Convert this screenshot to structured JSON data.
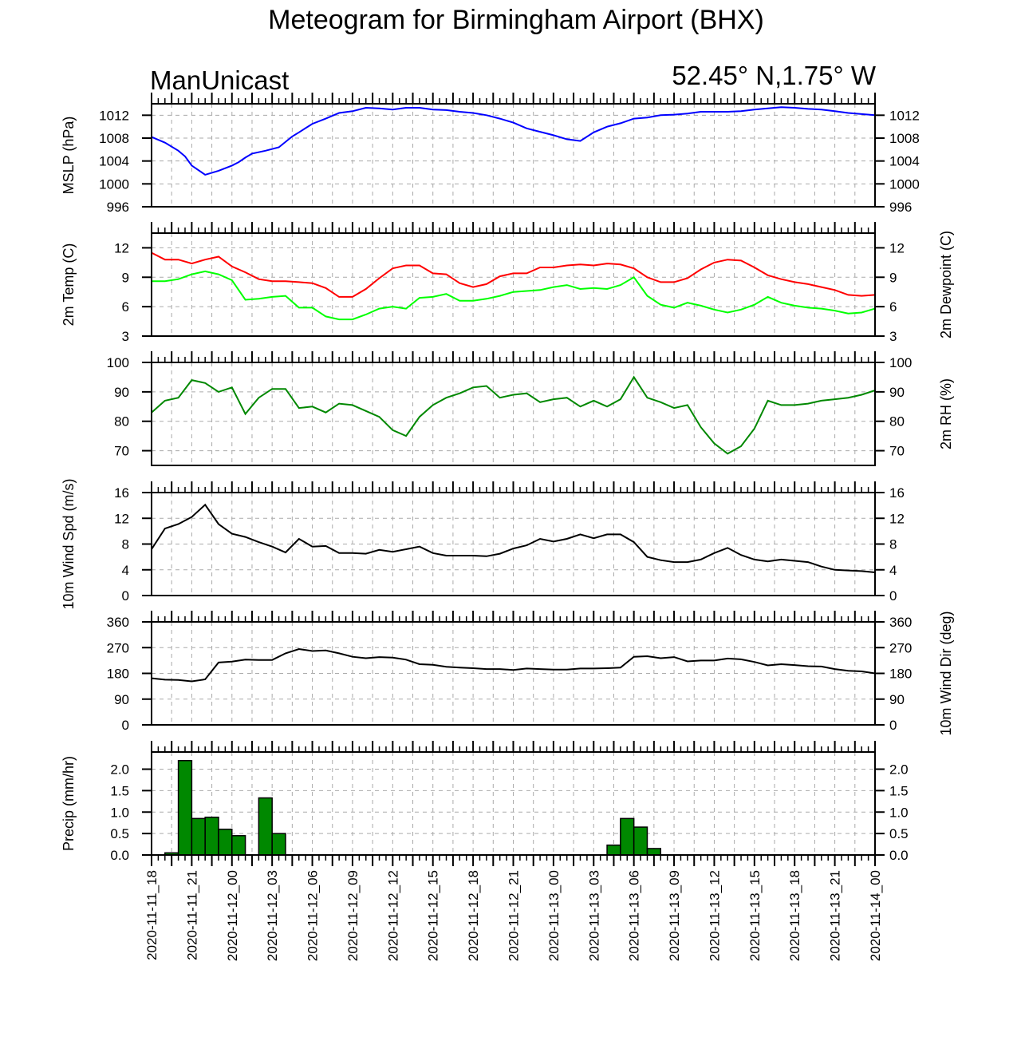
{
  "title": "Meteogram for Birmingham Airport (BHX)",
  "model": "ManUnicast",
  "location": "52.45° N,1.75° W",
  "time_labels": [
    "2020-11-11_18",
    "2020-11-11_21",
    "2020-11-12_00",
    "2020-11-12_03",
    "2020-11-12_06",
    "2020-11-12_09",
    "2020-11-12_12",
    "2020-11-12_15",
    "2020-11-12_18",
    "2020-11-12_21",
    "2020-11-13_00",
    "2020-11-13_03",
    "2020-11-13_06",
    "2020-11-13_09",
    "2020-11-13_12",
    "2020-11-13_15",
    "2020-11-13_18",
    "2020-11-13_21",
    "2020-11-14_00"
  ],
  "colors": {
    "mslp": "#0000ff",
    "temp": "#ff0000",
    "dewpoint": "#00ff00",
    "rh": "#008800",
    "wind": "#000000",
    "precip_fill": "#008800",
    "precip_edge": "#000000"
  },
  "chart_data": [
    {
      "type": "line",
      "id": "mslp",
      "ylabel": "MSLP (hPa)",
      "ylim": [
        996,
        1014
      ],
      "yticks": [
        996,
        1000,
        1004,
        1008,
        1012
      ],
      "grid": true,
      "x_hours": [
        0,
        2,
        4,
        5,
        6,
        8,
        10,
        12,
        13,
        14,
        15,
        17,
        19,
        21,
        22,
        24,
        26,
        28,
        30,
        32,
        34,
        36,
        38,
        40,
        42,
        44,
        46,
        47,
        48,
        50,
        52,
        54,
        56,
        58,
        60,
        62,
        64,
        66,
        68,
        70,
        72,
        74,
        76,
        78,
        80,
        82,
        84,
        86,
        88,
        90,
        92,
        94,
        96,
        98,
        100,
        102,
        104,
        106,
        108
      ],
      "series": [
        {
          "values": [
            1008.2,
            1007.2,
            1005.8,
            1004.8,
            1003.2,
            1001.6,
            1002.3,
            1003.2,
            1003.8,
            1004.6,
            1005.3,
            1005.8,
            1006.4,
            1008.3,
            1009.0,
            1010.5,
            1011.4,
            1012.4,
            1012.7,
            1013.3,
            1013.2,
            1013.0,
            1013.3,
            1013.3,
            1013.0,
            1012.9,
            1012.6,
            1012.5,
            1012.4,
            1012.0,
            1011.4,
            1010.7,
            1009.7,
            1009.1,
            1008.5,
            1007.8,
            1007.5,
            1009.0,
            1010.0,
            1010.6,
            1011.4,
            1011.6,
            1012.0,
            1012.1,
            1012.3,
            1012.6,
            1012.6,
            1012.6,
            1012.7,
            1013.0,
            1013.2,
            1013.4,
            1013.3,
            1013.1,
            1013.0,
            1012.7,
            1012.4,
            1012.2,
            1012.0
          ]
        }
      ]
    },
    {
      "type": "line",
      "id": "temp",
      "ylabel": "2m Temp (C)",
      "ylabel_right": "2m Dewpoint (C)",
      "ylim": [
        3,
        13.5
      ],
      "yticks": [
        3,
        6,
        9,
        12
      ],
      "grid": true,
      "x_hours": [
        0,
        2,
        4,
        6,
        8,
        10,
        12,
        14,
        16,
        18,
        20,
        22,
        24,
        26,
        28,
        30,
        32,
        34,
        36,
        38,
        40,
        42,
        44,
        46,
        48,
        50,
        52,
        54,
        56,
        58,
        60,
        62,
        64,
        66,
        68,
        70,
        72,
        74,
        76,
        78,
        80,
        82,
        84,
        86,
        88,
        90,
        92,
        94,
        96,
        98,
        100,
        102,
        104,
        106,
        108
      ],
      "series": [
        {
          "name": "temp",
          "color_key": "temp",
          "values": [
            11.5,
            10.8,
            10.8,
            10.4,
            10.8,
            11.1,
            10.1,
            9.5,
            8.8,
            8.6,
            8.6,
            8.5,
            8.4,
            7.9,
            7.0,
            7.0,
            7.8,
            8.9,
            9.9,
            10.2,
            10.2,
            9.4,
            9.3,
            8.4,
            8.0,
            8.3,
            9.1,
            9.4,
            9.4,
            10.0,
            10.0,
            10.2,
            10.3,
            10.2,
            10.4,
            10.3,
            9.9,
            9.0,
            8.5,
            8.5,
            8.9,
            9.8,
            10.5,
            10.8,
            10.7,
            10.0,
            9.2,
            8.8,
            8.5,
            8.3,
            8.0,
            7.7,
            7.2,
            7.1,
            7.2
          ]
        },
        {
          "name": "dewpoint",
          "color_key": "dewpoint",
          "values": [
            8.6,
            8.6,
            8.8,
            9.3,
            9.6,
            9.3,
            8.7,
            6.7,
            6.8,
            7.0,
            7.1,
            5.9,
            5.9,
            5.0,
            4.7,
            4.7,
            5.2,
            5.8,
            6.0,
            5.8,
            6.9,
            7.0,
            7.3,
            6.6,
            6.6,
            6.8,
            7.1,
            7.5,
            7.6,
            7.7,
            8.0,
            8.2,
            7.8,
            7.9,
            7.8,
            8.2,
            9.0,
            7.1,
            6.2,
            5.9,
            6.4,
            6.1,
            5.7,
            5.4,
            5.7,
            6.2,
            7.0,
            6.4,
            6.1,
            5.9,
            5.8,
            5.6,
            5.3,
            5.4,
            5.8
          ]
        }
      ]
    },
    {
      "type": "line",
      "id": "rh",
      "ylabel_right": "2m RH (%)",
      "ylim": [
        65,
        100
      ],
      "yticks": [
        70,
        80,
        90,
        100
      ],
      "grid": true,
      "x_hours": [
        0,
        2,
        4,
        6,
        8,
        10,
        12,
        14,
        16,
        18,
        20,
        22,
        24,
        26,
        28,
        30,
        32,
        34,
        36,
        38,
        40,
        42,
        44,
        46,
        48,
        50,
        52,
        54,
        56,
        58,
        60,
        62,
        64,
        66,
        68,
        70,
        72,
        74,
        76,
        78,
        80,
        82,
        84,
        86,
        88,
        90,
        92,
        94,
        96,
        98,
        100,
        102,
        104,
        106,
        108
      ],
      "series": [
        {
          "name": "rh",
          "color_key": "rh",
          "values": [
            83,
            87,
            88,
            94,
            93,
            90,
            91.5,
            82.5,
            88,
            91,
            91,
            84.5,
            85,
            83,
            86,
            85.5,
            83.5,
            81.5,
            77,
            75,
            81.5,
            85.5,
            88,
            89.5,
            91.5,
            92,
            88,
            89,
            89.5,
            86.5,
            87.5,
            88,
            85,
            87,
            85,
            87.5,
            95,
            88,
            86.5,
            84.5,
            85.5,
            78,
            72.5,
            69,
            71.5,
            77.5,
            87,
            85.5,
            85.5,
            86,
            87,
            87.5,
            88,
            89,
            90.5
          ]
        }
      ]
    },
    {
      "type": "line",
      "id": "wind_speed",
      "ylabel": "10m Wind Spd (m/s)",
      "ylim": [
        0,
        16
      ],
      "yticks": [
        0,
        4,
        8,
        12,
        16
      ],
      "grid": true,
      "x_hours": [
        0,
        2,
        4,
        6,
        8,
        10,
        12,
        14,
        16,
        18,
        20,
        22,
        24,
        26,
        28,
        30,
        32,
        34,
        36,
        38,
        40,
        42,
        44,
        46,
        48,
        50,
        52,
        54,
        56,
        58,
        60,
        62,
        64,
        66,
        68,
        70,
        72,
        74,
        76,
        78,
        80,
        82,
        84,
        86,
        88,
        90,
        92,
        94,
        96,
        98,
        100,
        102,
        104,
        106,
        108
      ],
      "series": [
        {
          "name": "wind_speed",
          "color_key": "wind",
          "values": [
            7.2,
            10.4,
            11.1,
            12.2,
            14.1,
            11.1,
            9.6,
            9.1,
            8.3,
            7.6,
            6.7,
            8.8,
            7.6,
            7.7,
            6.6,
            6.6,
            6.5,
            7.1,
            6.8,
            7.2,
            7.6,
            6.6,
            6.2,
            6.2,
            6.2,
            6.1,
            6.5,
            7.3,
            7.8,
            8.8,
            8.4,
            8.8,
            9.5,
            8.9,
            9.5,
            9.5,
            8.3,
            6.0,
            5.5,
            5.2,
            5.2,
            5.6,
            6.6,
            7.4,
            6.3,
            5.6,
            5.3,
            5.6,
            5.4,
            5.2,
            4.5,
            4.0,
            3.9,
            3.8,
            3.6
          ]
        }
      ]
    },
    {
      "type": "line",
      "id": "wind_dir",
      "ylabel_right": "10m Wind Dir (deg)",
      "ylim": [
        0,
        360
      ],
      "yticks": [
        0,
        90,
        180,
        270,
        360
      ],
      "grid": true,
      "x_hours": [
        0,
        2,
        4,
        6,
        8,
        10,
        12,
        14,
        16,
        18,
        20,
        22,
        24,
        26,
        28,
        30,
        32,
        34,
        36,
        38,
        40,
        42,
        44,
        46,
        48,
        50,
        52,
        54,
        56,
        58,
        60,
        62,
        64,
        66,
        68,
        70,
        72,
        74,
        76,
        78,
        80,
        82,
        84,
        86,
        88,
        90,
        92,
        94,
        96,
        98,
        100,
        102,
        104,
        106,
        108
      ],
      "series": [
        {
          "name": "wind_dir",
          "color_key": "wind",
          "values": [
            163,
            158,
            157,
            152,
            159,
            218,
            221,
            228,
            227,
            227,
            250,
            265,
            258,
            260,
            250,
            238,
            233,
            237,
            235,
            228,
            212,
            210,
            203,
            200,
            198,
            195,
            195,
            192,
            197,
            195,
            193,
            193,
            197,
            197,
            198,
            200,
            238,
            240,
            233,
            237,
            222,
            225,
            225,
            232,
            229,
            220,
            208,
            212,
            209,
            205,
            204,
            195,
            189,
            187,
            180
          ]
        }
      ]
    },
    {
      "type": "bar",
      "id": "precip",
      "ylabel": "Precip (mm/hr)",
      "ylim": [
        0,
        2.4
      ],
      "yticks": [
        0.0,
        0.5,
        1.0,
        1.5,
        2.0
      ],
      "ytick_labels": [
        "0.0",
        "0.5",
        "1.0",
        "1.5",
        "2.0"
      ],
      "grid": true,
      "bar_hours": [
        3,
        5,
        7,
        9,
        11,
        13,
        17,
        19,
        69,
        71,
        73,
        75
      ],
      "values": [
        0.05,
        2.2,
        0.85,
        0.88,
        0.6,
        0.45,
        1.33,
        0.5,
        0.23,
        0.85,
        0.65,
        0.15
      ]
    }
  ]
}
